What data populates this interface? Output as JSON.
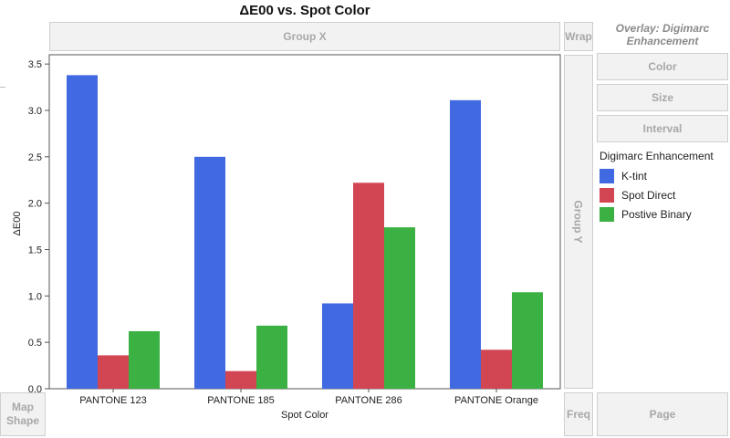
{
  "chart_title": "ΔE00 vs. Spot Color",
  "zones": {
    "group_x": "Group X",
    "wrap": "Wrap",
    "overlay": "Overlay: Digimarc Enhancement",
    "color": "Color",
    "size": "Size",
    "interval": "Interval",
    "group_y": "Group Y",
    "map_shape_1": "Map",
    "map_shape_2": "Shape",
    "freq": "Freq",
    "page": "Page"
  },
  "legend": {
    "title": "Digimarc Enhancement",
    "items": [
      {
        "label": "K-tint",
        "color": "#4169e1"
      },
      {
        "label": "Spot Direct",
        "color": "#d24654"
      },
      {
        "label": "Postive Binary",
        "color": "#3cb143"
      }
    ]
  },
  "chart_data": {
    "type": "bar",
    "title": "ΔE00 vs. Spot Color",
    "xlabel": "Spot Color",
    "ylabel": "ΔE00",
    "ylim": [
      0,
      3.6
    ],
    "yticks": [
      "0.0",
      "0.5",
      "1.0",
      "1.5",
      "2.0",
      "2.5",
      "3.0",
      "3.5"
    ],
    "categories": [
      "PANTONE 123",
      "PANTONE 185",
      "PANTONE 286",
      "PANTONE Orange"
    ],
    "series": [
      {
        "name": "K-tint",
        "color": "#4169e1",
        "values": [
          3.38,
          2.5,
          0.92,
          3.11
        ]
      },
      {
        "name": "Spot Direct",
        "color": "#d24654",
        "values": [
          0.36,
          0.19,
          2.22,
          0.42
        ]
      },
      {
        "name": "Postive Binary",
        "color": "#3cb143",
        "values": [
          0.62,
          0.68,
          1.74,
          1.04
        ]
      }
    ],
    "grid": false,
    "legend_position": "right"
  }
}
